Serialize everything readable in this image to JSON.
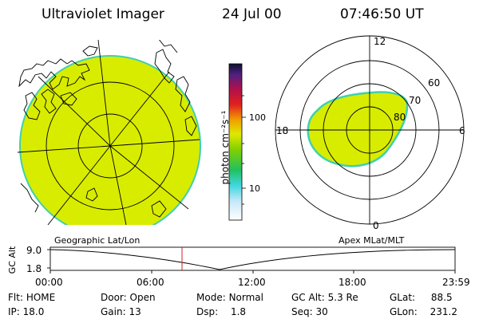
{
  "header": {
    "title": "Ultraviolet Imager",
    "date": "24 Jul 00",
    "time": "07:46:50 UT"
  },
  "colors": {
    "aurora_fill": "#d8ec00",
    "aurora_edge": "#3fd0b0",
    "grid": "#000000",
    "marker": "#d02020"
  },
  "colorbar": {
    "label": "photon cm⁻²s⁻¹",
    "ticks": [
      "100",
      "10"
    ]
  },
  "geo_panel": {
    "caption": "Geographic Lat/Lon"
  },
  "polar_panel": {
    "caption": "Apex MLat/MLT",
    "mlt_labels": {
      "top": "12",
      "left": "18",
      "right": "6",
      "bottom": "0"
    },
    "lat_labels": [
      "60",
      "70",
      "80"
    ]
  },
  "altitude_plot": {
    "ylabel": "GC Alt",
    "yticks": [
      "9.0",
      "1.8"
    ],
    "xticks": [
      "00:00",
      "06:00",
      "12:00",
      "18:00",
      "23:59"
    ]
  },
  "status": {
    "flt": {
      "label": "Flt:",
      "value": "HOME"
    },
    "ip": {
      "label": "IP:",
      "value": "18.0"
    },
    "door": {
      "label": "Door:",
      "value": "Open"
    },
    "gain": {
      "label": "Gain:",
      "value": "13"
    },
    "mode": {
      "label": "Mode:",
      "value": "Normal"
    },
    "dsp": {
      "label": "Dsp:",
      "value": "1.8"
    },
    "gc_alt": {
      "label": "GC Alt:",
      "value": "5.3 Re"
    },
    "seq": {
      "label": "Seq:",
      "value": "30"
    },
    "glat": {
      "label": "GLat:",
      "value": "88.5"
    },
    "glon": {
      "label": "GLon:",
      "value": "231.2"
    }
  }
}
